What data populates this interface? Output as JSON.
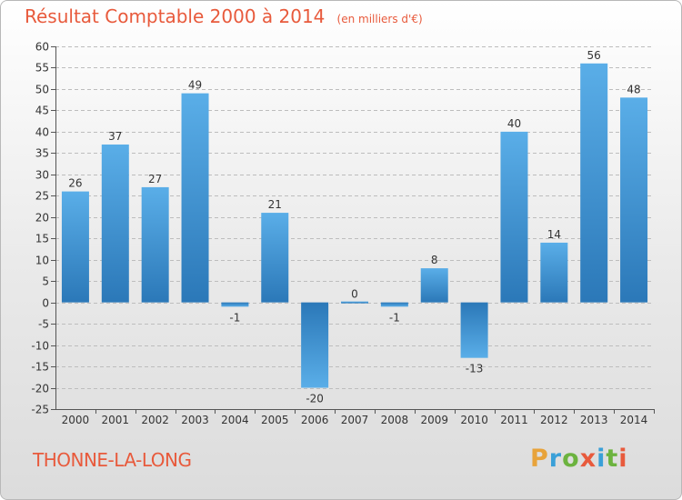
{
  "page": {
    "title": "Résultat Comptable 2000 à 2014",
    "subtitle": "(en milliers d'€)",
    "place": "THONNE-LA-LONG",
    "logo": {
      "text": "Proxiti",
      "letters": [
        "P",
        "r",
        "o",
        "x",
        "i",
        "t",
        "i"
      ],
      "colors": [
        "#e8a33a",
        "#3aa0d8",
        "#6cb33f",
        "#e85a3c",
        "#3aa0d8",
        "#6cb33f",
        "#e85a3c"
      ]
    }
  },
  "colors": {
    "title": "#e85a3c",
    "bar_light": "#5aaee8",
    "bar_dark": "#2b78b8",
    "grid": "#bdbdbd",
    "axis": "#555555"
  },
  "chart_data": {
    "type": "bar",
    "title": "Résultat Comptable 2000 à 2014",
    "subtitle": "(en milliers d'€)",
    "xlabel": "",
    "ylabel": "",
    "ylim": [
      -25,
      60
    ],
    "ytick_step": 5,
    "yticks": [
      "60",
      "55",
      "50",
      "45",
      "40",
      "35",
      "30",
      "25",
      "20",
      "15",
      "10",
      "5",
      "0",
      "-5",
      "-10",
      "-15",
      "-20",
      "-25"
    ],
    "grid": true,
    "categories": [
      "2000",
      "2001",
      "2002",
      "2003",
      "2004",
      "2005",
      "2006",
      "2007",
      "2008",
      "2009",
      "2010",
      "2011",
      "2012",
      "2013",
      "2014"
    ],
    "values": [
      26,
      37,
      27,
      49,
      -1,
      21,
      -20,
      0,
      -1,
      8,
      -13,
      40,
      14,
      56,
      48
    ],
    "labels": [
      "26",
      "37",
      "27",
      "49",
      "-1",
      "21",
      "-20",
      "0",
      "-1",
      "8",
      "-13",
      "40",
      "14",
      "56",
      "48"
    ]
  }
}
